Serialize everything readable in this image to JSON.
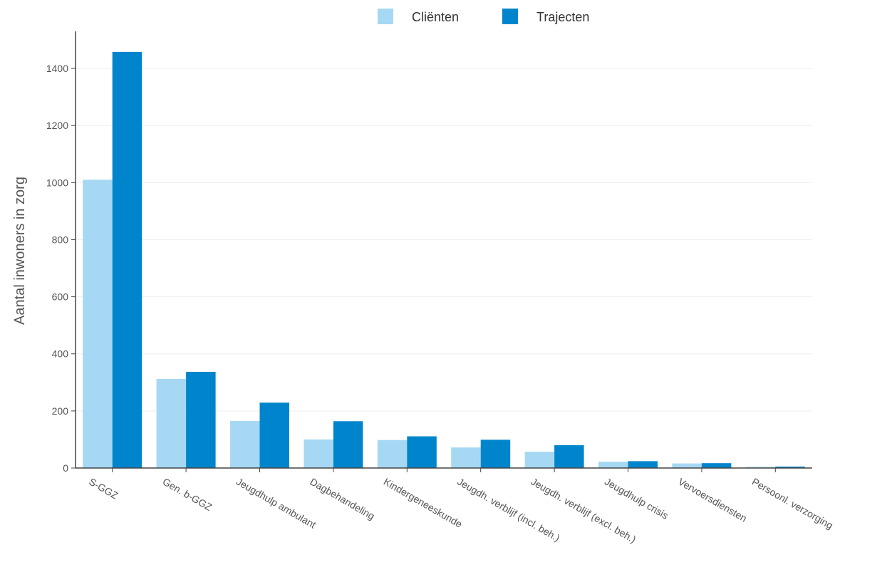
{
  "chart_data": {
    "type": "bar",
    "title": "",
    "xlabel": "",
    "ylabel": "Aantal inwoners in zorg",
    "ylim": [
      0,
      1530
    ],
    "yticks": [
      0,
      200,
      400,
      600,
      800,
      1000,
      1200,
      1400
    ],
    "grid": true,
    "legend_position": "top-center",
    "categories": [
      "S-GGZ",
      "Gen. b-GGZ",
      "Jeugdhulp ambulant",
      "Dagbehandeling",
      "Kindergeneeskunde",
      "Jeugdh. verblijf (incl. beh.)",
      "Jeugdh. verblijf (excl. beh.)",
      "Jeugdhulp crisis",
      "Vervoersdiensten",
      "Persoonl. verzorging"
    ],
    "series": [
      {
        "name": "Cliënten",
        "color": "#a6d8f3",
        "values": [
          1010,
          312,
          165,
          100,
          98,
          72,
          57,
          22,
          16,
          4
        ]
      },
      {
        "name": "Trajecten",
        "color": "#0085cc",
        "values": [
          1458,
          337,
          229,
          164,
          111,
          99,
          80,
          24,
          17,
          5
        ]
      }
    ]
  }
}
